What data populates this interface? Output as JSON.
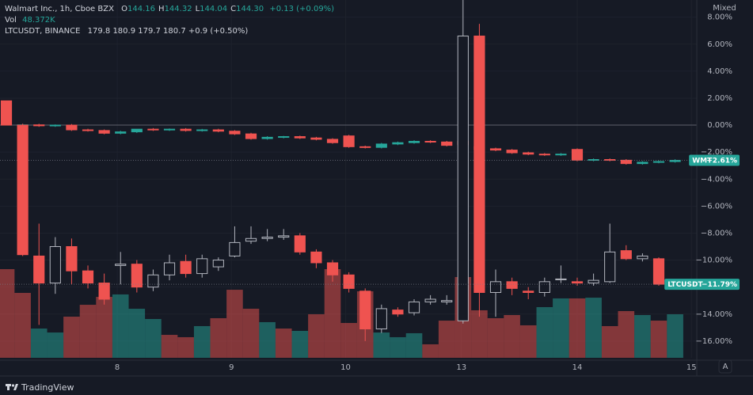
{
  "chart_data": {
    "type": "candlestick",
    "legend": {
      "main": "Walmart Inc., 1h, Cboe BZX",
      "ohlc": [
        {
          "k": "O",
          "v": "144.16"
        },
        {
          "k": "H",
          "v": "144.32"
        },
        {
          "k": "L",
          "v": "144.04"
        },
        {
          "k": "C",
          "v": "144.30"
        }
      ],
      "change": "+0.13 (+0.09%)",
      "vol_label": "Vol",
      "vol_value": "48.372K",
      "compare": "LTCUSDT, BINANCE",
      "compare_values": "179.8 180.9 179.7 180.7 +0.9 (+0.50%)"
    },
    "scale_mode": "Mixed",
    "grid": true,
    "xlim": [
      -0.39,
      42.33
    ],
    "xticks": [
      {
        "value": 6.8,
        "label": "8"
      },
      {
        "value": 13.8,
        "label": "9"
      },
      {
        "value": 20.8,
        "label": "10"
      },
      {
        "value": 27.9,
        "label": "13"
      },
      {
        "value": 35.0,
        "label": "14"
      },
      {
        "value": 42.0,
        "label": "15"
      }
    ],
    "ylim": [
      -17.24,
      9.27
    ],
    "yticks": [
      {
        "value": 8,
        "label": "8.00%"
      },
      {
        "value": 6,
        "label": "6.00%"
      },
      {
        "value": 4,
        "label": "4.00%"
      },
      {
        "value": 2,
        "label": "2.00%"
      },
      {
        "value": 0,
        "label": "0.00%"
      },
      {
        "value": -2,
        "label": "−2.00%"
      },
      {
        "value": -4,
        "label": "−4.00%"
      },
      {
        "value": -6,
        "label": "−6.00%"
      },
      {
        "value": -8,
        "label": "−8.00%"
      },
      {
        "value": -10,
        "label": "−10.00%"
      },
      {
        "value": -12,
        "label": "−12.00%"
      },
      {
        "value": -14,
        "label": "−14.00%"
      },
      {
        "value": -16,
        "label": "−16.00%"
      }
    ],
    "series": [
      {
        "name": "WMT",
        "style": "filled",
        "up_color": "#26a69a",
        "down_color": "#ef5350",
        "last_label": "−2.61%",
        "open": [
          null,
          0,
          0.02,
          -0.05,
          0,
          -0.35,
          -0.4,
          -0.6,
          -0.5,
          -0.3,
          -0.35,
          -0.3,
          -0.4,
          -0.35,
          -0.45,
          -0.65,
          -1.0,
          -0.9,
          -0.85,
          -0.95,
          -1.05,
          -0.8,
          -1.6,
          -1.65,
          -1.4,
          -1.3,
          -1.2,
          -1.25,
          -1.2,
          -1.6,
          -1.75,
          -1.85,
          -2.05,
          -2.15,
          -2.2,
          -1.8,
          -2.6,
          -2.55,
          -2.6,
          -2.85,
          -2.75,
          -2.7
        ],
        "high": [
          null,
          0.1,
          0.1,
          0.05,
          0.08,
          -0.27,
          -0.32,
          -0.42,
          -0.35,
          -0.22,
          -0.25,
          -0.22,
          -0.28,
          -0.27,
          -0.37,
          -0.57,
          -0.82,
          -0.8,
          -0.78,
          -0.87,
          -0.97,
          -0.72,
          -1.52,
          -1.32,
          -1.22,
          -1.12,
          -1.12,
          -1.17,
          -1.12,
          -1.52,
          -1.67,
          -1.77,
          -1.97,
          -2.07,
          -2.07,
          -1.72,
          -2.47,
          -2.47,
          -2.52,
          -2.67,
          -2.62,
          -2.53
        ],
        "low": [
          null,
          -0.08,
          -0.13,
          -0.13,
          -0.43,
          -0.48,
          -0.68,
          -0.68,
          -0.58,
          -0.43,
          -0.43,
          -0.48,
          -0.48,
          -0.53,
          -0.73,
          -1.08,
          -1.08,
          -0.98,
          -1.03,
          -1.13,
          -1.38,
          -1.68,
          -1.73,
          -1.73,
          -1.48,
          -1.38,
          -1.33,
          -1.58,
          -1.53,
          -1.88,
          -1.93,
          -2.13,
          -2.23,
          -2.28,
          -2.28,
          -2.68,
          -2.68,
          -2.68,
          -2.93,
          -2.93,
          -2.83,
          -2.78
        ],
        "close": [
          null,
          0.02,
          -0.05,
          0,
          -0.35,
          -0.4,
          -0.6,
          -0.5,
          -0.3,
          -0.35,
          -0.3,
          -0.4,
          -0.35,
          -0.45,
          -0.65,
          -1.0,
          -0.9,
          -0.85,
          -0.95,
          -1.05,
          -1.3,
          -1.6,
          -1.65,
          -1.4,
          -1.3,
          -1.2,
          -1.25,
          -1.5,
          -1.45,
          -1.8,
          -1.85,
          -2.05,
          -2.15,
          -2.2,
          -2.15,
          -2.6,
          -2.55,
          -2.6,
          -2.85,
          -2.75,
          -2.7,
          -2.61
        ]
      },
      {
        "name": "LTCUSDT",
        "style": "hollow",
        "up_color": "#b2b5be",
        "down_color": "#ef5350",
        "last_label": "−11.79%",
        "open": [
          1.8,
          0,
          -9.7,
          -11.7,
          -9.0,
          -10.8,
          -11.7,
          -10.4,
          -10.3,
          -12.0,
          -11.1,
          -10.1,
          -11.0,
          -10.5,
          -9.7,
          -8.6,
          -8.4,
          -8.3,
          -8.2,
          -9.4,
          -10.2,
          -11.1,
          -12.3,
          -15.1,
          -13.7,
          -13.9,
          -13.1,
          -13.1,
          -14.5,
          6.6,
          -12.4,
          -11.6,
          -12.3,
          -12.4,
          -11.4,
          -11.6,
          -11.7,
          -11.6,
          -9.3,
          -9.9,
          -9.9,
          null
        ],
        "high": [
          1.8,
          0.1,
          -7.3,
          -8.3,
          -8.4,
          -10.4,
          -11.0,
          -9.4,
          -10.0,
          -10.7,
          -9.6,
          -9.6,
          -9.6,
          -9.8,
          -7.5,
          -7.5,
          -7.7,
          -7.7,
          -8.0,
          -9.2,
          -10.0,
          -10.9,
          -12.1,
          -13.3,
          -13.5,
          -12.9,
          -12.6,
          -12.6,
          9.3,
          7.5,
          -10.7,
          -11.3,
          -12.0,
          -11.3,
          -10.4,
          -11.3,
          -11.0,
          -7.3,
          -8.9,
          -9.5,
          -9.8,
          null
        ],
        "low": [
          0,
          -9.7,
          -14.8,
          -12.5,
          -11.8,
          -12.1,
          -13.3,
          -11.8,
          -12.4,
          -12.3,
          -11.5,
          -11.3,
          -11.3,
          -10.8,
          -9.8,
          -8.8,
          -8.6,
          -8.5,
          -9.6,
          -10.6,
          -11.6,
          -12.4,
          -16.0,
          -15.4,
          -14.2,
          -14.1,
          -13.3,
          -13.3,
          -14.7,
          -14.2,
          -14.2,
          -12.6,
          -12.9,
          -12.7,
          -11.7,
          -11.9,
          -11.9,
          -11.7,
          -10.0,
          -10.1,
          -11.9,
          null
        ],
        "close": [
          0,
          -9.6,
          -11.7,
          -9.0,
          -10.8,
          -11.7,
          -12.9,
          -10.3,
          -12.0,
          -11.1,
          -10.2,
          -11.0,
          -9.9,
          -10.0,
          -8.7,
          -8.4,
          -8.3,
          -8.2,
          -9.4,
          -10.2,
          -11.1,
          -12.1,
          -15.1,
          -13.6,
          -14.0,
          -13.1,
          -12.9,
          -13.0,
          6.6,
          -12.4,
          -11.6,
          -12.1,
          -12.4,
          -11.6,
          -11.4,
          -11.7,
          -11.5,
          -9.4,
          -9.9,
          -9.7,
          -11.79,
          null
        ]
      }
    ],
    "volume": {
      "values": [
        98.5,
        72.1,
        32.5,
        28.1,
        45.7,
        58.9,
        67.7,
        70.4,
        54.5,
        43.1,
        25.5,
        22.9,
        35.2,
        44.0,
        75.6,
        54.5,
        39.6,
        32.5,
        29.9,
        48.4,
        98.5,
        38.7,
        73.9,
        28.1,
        22.9,
        27.3,
        15.0,
        41.3,
        89.7,
        52.8,
        44.0,
        47.5,
        36.1,
        56.3,
        66.0,
        66.0,
        66.8,
        35.2,
        51.9,
        47.5,
        41.3,
        48.372
      ],
      "colors": [
        "#ef5350",
        "#ef5350",
        "#26a69a",
        "#26a69a",
        "#ef5350",
        "#ef5350",
        "#ef5350",
        "#26a69a",
        "#26a69a",
        "#26a69a",
        "#ef5350",
        "#ef5350",
        "#26a69a",
        "#ef5350",
        "#ef5350",
        "#ef5350",
        "#26a69a",
        "#ef5350",
        "#26a69a",
        "#ef5350",
        "#ef5350",
        "#ef5350",
        "#ef5350",
        "#26a69a",
        "#26a69a",
        "#26a69a",
        "#ef5350",
        "#ef5350",
        "#ef5350",
        "#ef5350",
        "#ef5350",
        "#ef5350",
        "#ef5350",
        "#26a69a",
        "#26a69a",
        "#ef5350",
        "#26a69a",
        "#ef5350",
        "#ef5350",
        "#26a69a",
        "#ef5350",
        "#26a69a"
      ]
    },
    "footer": {
      "brand": "TradingView",
      "auto_button": "A"
    }
  }
}
